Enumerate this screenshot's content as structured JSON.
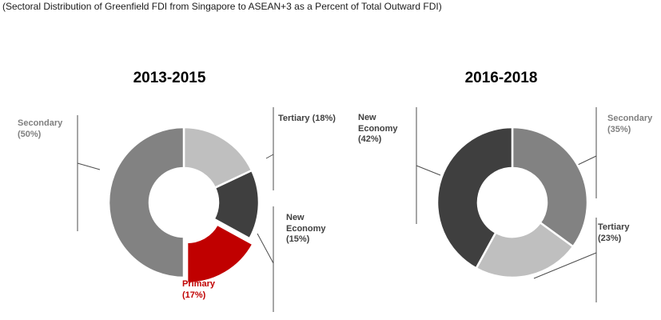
{
  "caption": "(Sectoral Distribution of Greenfield FDI from Singapore to ASEAN+3 as a Percent of Total Outward FDI)",
  "colors": {
    "secondary_gray": "#828282",
    "tertiary_light_gray": "#bfbfbf",
    "new_economy_dark_gray": "#3f3f3f",
    "primary_red": "#c00000",
    "label_gray": "#808080",
    "label_dark": "#3f3f3f",
    "label_red": "#c00000",
    "leader_line": "#4d4d4d"
  },
  "chart_data": [
    {
      "type": "pie",
      "title": "2013-2015",
      "donut": true,
      "donut_hole_ratio": 0.46,
      "start_angle_deg": 0,
      "direction": "clockwise",
      "unit": "percent_of_total_outward_fdi",
      "slices": [
        {
          "name": "Tertiary",
          "value": 18,
          "color": "#bfbfbf",
          "callout": "Tertiary (18%)",
          "exploded": false
        },
        {
          "name": "New Economy",
          "value": 15,
          "color": "#3f3f3f",
          "callout": "New\nEconomy\n(15%)",
          "exploded": false
        },
        {
          "name": "Primary",
          "value": 17,
          "color": "#c00000",
          "callout": "Primary\n(17%)",
          "exploded": true
        },
        {
          "name": "Secondary",
          "value": 50,
          "color": "#828282",
          "callout": "Secondary\n(50%)",
          "exploded": false
        }
      ]
    },
    {
      "type": "pie",
      "title": "2016-2018",
      "donut": true,
      "donut_hole_ratio": 0.46,
      "start_angle_deg": 0,
      "direction": "clockwise",
      "unit": "percent_of_total_outward_fdi",
      "slices": [
        {
          "name": "Secondary",
          "value": 35,
          "color": "#828282",
          "callout": "Secondary\n(35%)",
          "exploded": false
        },
        {
          "name": "Tertiary",
          "value": 23,
          "color": "#bfbfbf",
          "callout": "Tertiary\n(23%)",
          "exploded": false
        },
        {
          "name": "New Economy",
          "value": 42,
          "color": "#3f3f3f",
          "callout": "New\nEconomy\n(42%)",
          "exploded": false
        }
      ]
    }
  ]
}
